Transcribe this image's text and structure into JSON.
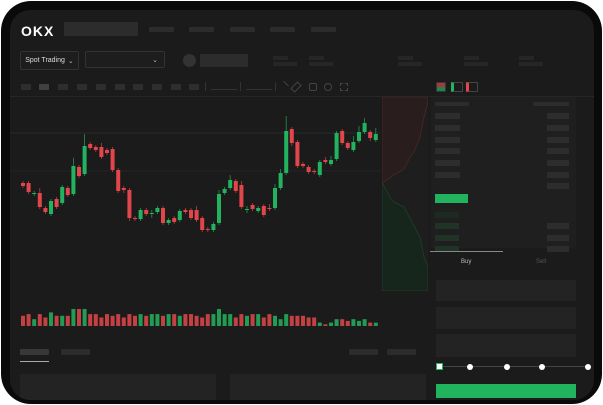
{
  "header": {
    "logo": "OKX"
  },
  "controls": {
    "market_selector": "Spot Trading",
    "chevron": "⌄"
  },
  "trade": {
    "tabs": [
      {
        "label": "Buy",
        "active": true
      },
      {
        "label": "Sell",
        "active": false
      }
    ],
    "slider_value": 0
  },
  "colors": {
    "up": "#22b35e",
    "down": "#e0464a",
    "background": "#1b1b1b",
    "buy_button": "#22b35e"
  },
  "chart_data": {
    "type": "candlestick",
    "ylim": [
      10,
      140
    ],
    "candles": [
      [
        68,
        70,
        63,
        65
      ],
      [
        68,
        70,
        57,
        59
      ],
      [
        57,
        60,
        55,
        58
      ],
      [
        58,
        63,
        42,
        44
      ],
      [
        43,
        45,
        37,
        39
      ],
      [
        37,
        52,
        35,
        50
      ],
      [
        52,
        54,
        42,
        44
      ],
      [
        48,
        66,
        46,
        64
      ],
      [
        63,
        65,
        54,
        56
      ],
      [
        57,
        93,
        55,
        85
      ],
      [
        84,
        86,
        73,
        75
      ],
      [
        77,
        117,
        75,
        105
      ],
      [
        107,
        109,
        101,
        103
      ],
      [
        104,
        106,
        99,
        101
      ],
      [
        104,
        108,
        92,
        94
      ],
      [
        101,
        103,
        96,
        98
      ],
      [
        102,
        104,
        79,
        81
      ],
      [
        81,
        83,
        58,
        60
      ],
      [
        63,
        65,
        58,
        61
      ],
      [
        61,
        63,
        30,
        33
      ],
      [
        33,
        35,
        30,
        32
      ],
      [
        32,
        43,
        30,
        41
      ],
      [
        41,
        43,
        35,
        37
      ],
      [
        37,
        41,
        33,
        38
      ],
      [
        39,
        45,
        37,
        43
      ],
      [
        43,
        45,
        26,
        28
      ],
      [
        28,
        33,
        26,
        31
      ],
      [
        33,
        35,
        27,
        29
      ],
      [
        31,
        42,
        29,
        40
      ],
      [
        41,
        43,
        37,
        39
      ],
      [
        41,
        43,
        31,
        33
      ],
      [
        41,
        45,
        29,
        31
      ],
      [
        33,
        35,
        19,
        21
      ],
      [
        22,
        24,
        19,
        21
      ],
      [
        21,
        29,
        19,
        27
      ],
      [
        28,
        61,
        26,
        57
      ],
      [
        58,
        64,
        56,
        62
      ],
      [
        63,
        76,
        61,
        71
      ],
      [
        70,
        72,
        58,
        60
      ],
      [
        66,
        70,
        42,
        44
      ],
      [
        41,
        45,
        38,
        42
      ],
      [
        46,
        48,
        40,
        42
      ],
      [
        40,
        45,
        38,
        43
      ],
      [
        45,
        47,
        34,
        36
      ],
      [
        43,
        47,
        40,
        42
      ],
      [
        43,
        67,
        41,
        63
      ],
      [
        63,
        82,
        61,
        78
      ],
      [
        78,
        135,
        76,
        120
      ],
      [
        122,
        124,
        105,
        108
      ],
      [
        109,
        111,
        83,
        85
      ],
      [
        87,
        89,
        83,
        85
      ],
      [
        84,
        86,
        77,
        79
      ],
      [
        80,
        82,
        77,
        79
      ],
      [
        76,
        91,
        74,
        89
      ],
      [
        91,
        94,
        87,
        89
      ],
      [
        87,
        95,
        85,
        91
      ],
      [
        92,
        120,
        90,
        118
      ],
      [
        120,
        122,
        106,
        108
      ],
      [
        108,
        110,
        101,
        103
      ],
      [
        101,
        115,
        99,
        109
      ],
      [
        110,
        125,
        108,
        119
      ],
      [
        119,
        133,
        117,
        128
      ],
      [
        119,
        121,
        110,
        113
      ],
      [
        111,
        123,
        109,
        117
      ]
    ],
    "volume": [
      6,
      7,
      4,
      7,
      5,
      8,
      6,
      6,
      6,
      10,
      10,
      10,
      7,
      7,
      5,
      7,
      6,
      7,
      5,
      7,
      6,
      7,
      6,
      7,
      7,
      6,
      7,
      7,
      6,
      7,
      7,
      6,
      5,
      7,
      7,
      10,
      7,
      7,
      5,
      7,
      6,
      7,
      7,
      5,
      7,
      6,
      4,
      7,
      6,
      6,
      6,
      5,
      5,
      2,
      1,
      2,
      4,
      4,
      3,
      4,
      3,
      4,
      2,
      2
    ]
  }
}
